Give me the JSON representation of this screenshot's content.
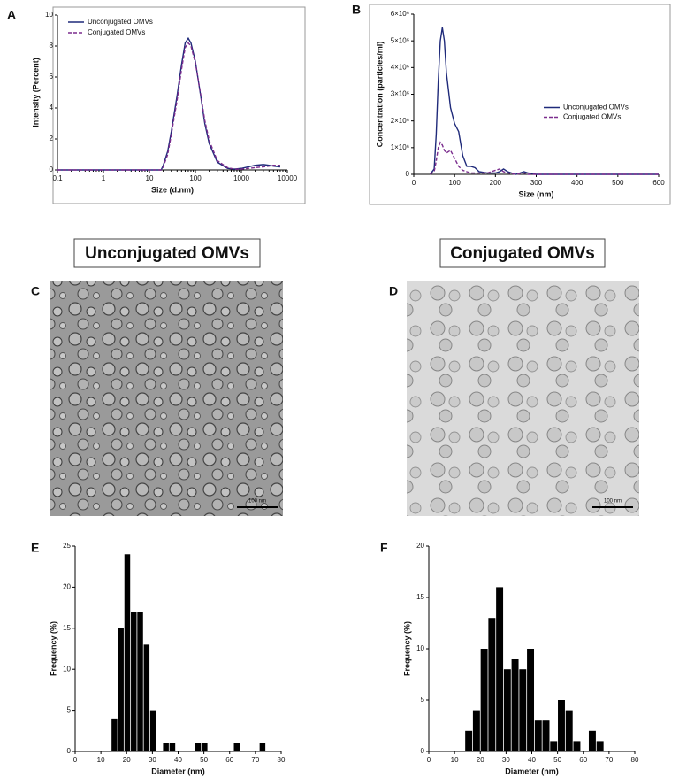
{
  "chart_data": [
    {
      "type": "line",
      "label": "A",
      "xscale": "log",
      "xlabel": "Size (d.nm)",
      "ylabel": "Intensity (Percent)",
      "x": [
        0.1,
        10,
        18,
        20,
        25,
        30,
        40,
        50,
        60,
        70,
        80,
        100,
        130,
        160,
        200,
        300,
        500,
        700,
        1000,
        2000,
        3000,
        4000,
        5000,
        7000
      ],
      "xlim": [
        0.1,
        10000
      ],
      "xticks": [
        0.1,
        1,
        10,
        100,
        1000,
        10000
      ],
      "ylim": [
        0,
        10
      ],
      "yticks": [
        0,
        2,
        4,
        6,
        8,
        10
      ],
      "legend": "upper left",
      "series": [
        {
          "name": "Unconjugated OMVs",
          "color": "#1f2a7a",
          "linestyle": "solid",
          "values": [
            0,
            0,
            0,
            0.3,
            1.2,
            2.5,
            4.8,
            6.8,
            8.2,
            8.5,
            8.2,
            7.0,
            4.8,
            3.0,
            1.7,
            0.5,
            0.1,
            0.05,
            0.1,
            0.3,
            0.35,
            0.3,
            0.25,
            0.2
          ]
        },
        {
          "name": "Conjugated OMVs",
          "color": "#7b2d8e",
          "linestyle": "dashed",
          "values": [
            0,
            0,
            0,
            0.2,
            1.0,
            2.3,
            4.5,
            6.5,
            7.9,
            8.2,
            8.0,
            6.9,
            4.9,
            3.2,
            1.9,
            0.6,
            0.15,
            0.05,
            0.05,
            0.15,
            0.2,
            0.25,
            0.3,
            0.3
          ]
        }
      ]
    },
    {
      "type": "line",
      "label": "B",
      "xlabel": "Size (nm)",
      "ylabel": "Concentration (particles/ml)",
      "x": [
        40,
        50,
        55,
        60,
        65,
        70,
        75,
        80,
        90,
        100,
        110,
        120,
        130,
        140,
        150,
        160,
        180,
        200,
        210,
        220,
        230,
        250,
        270,
        280,
        300,
        600
      ],
      "xlim": [
        0,
        600
      ],
      "xticks": [
        0,
        100,
        200,
        300,
        400,
        500,
        600
      ],
      "ylim": [
        0,
        6000000
      ],
      "yticks": [
        0,
        {
          "value": 1000000,
          "label": "1×10⁶"
        },
        {
          "value": 2000000,
          "label": "2×10⁶"
        },
        {
          "value": 3000000,
          "label": "3×10⁶"
        },
        {
          "value": 4000000,
          "label": "4×10⁶"
        },
        {
          "value": 5000000,
          "label": "5×10⁶"
        },
        {
          "value": 6000000,
          "label": "6×10⁶"
        }
      ],
      "legend": "center right",
      "series": [
        {
          "name": "Unconjugated OMVs",
          "color": "#1f2a7a",
          "linestyle": "solid",
          "values": [
            0,
            200000,
            1500000,
            3500000,
            5000000,
            5500000,
            5000000,
            3800000,
            2500000,
            1900000,
            1600000,
            700000,
            300000,
            300000,
            250000,
            100000,
            50000,
            50000,
            100000,
            200000,
            100000,
            0,
            100000,
            50000,
            0,
            0
          ]
        },
        {
          "name": "Conjugated OMVs",
          "color": "#7b2d8e",
          "linestyle": "dashed",
          "values": [
            0,
            100000,
            500000,
            1000000,
            1200000,
            1100000,
            900000,
            800000,
            900000,
            600000,
            300000,
            150000,
            100000,
            50000,
            50000,
            50000,
            50000,
            150000,
            200000,
            100000,
            50000,
            0,
            50000,
            0,
            0,
            0
          ]
        }
      ]
    },
    {
      "type": "histogram",
      "label": "E",
      "xlabel": "Diameter (nm)",
      "ylabel": "Frequency (%)",
      "color": "#000000",
      "bins": [
        14,
        16.5,
        19,
        21.5,
        24,
        26.5,
        29,
        31.5,
        34,
        36.5,
        39,
        41.5,
        44,
        46.5,
        49,
        51.5,
        54,
        56.5,
        59,
        61.5,
        64,
        66.5,
        69,
        71.5,
        74
      ],
      "values": [
        4,
        15,
        24,
        17,
        17,
        13,
        5,
        0,
        1,
        1,
        0,
        0,
        0,
        1,
        1,
        0,
        0,
        0,
        0,
        1,
        0,
        0,
        0,
        1
      ],
      "xlim": [
        0,
        80
      ],
      "xticks": [
        0,
        10,
        20,
        30,
        40,
        50,
        60,
        70,
        80
      ],
      "ylim": [
        0,
        25
      ],
      "yticks": [
        0,
        5,
        10,
        15,
        20,
        25
      ]
    },
    {
      "type": "histogram",
      "label": "F",
      "xlabel": "Diameter (nm)",
      "ylabel": "Frequency (%)",
      "color": "#000000",
      "bins": [
        14,
        17,
        20,
        23,
        26,
        29,
        32,
        35,
        38,
        41,
        44,
        47,
        50,
        53,
        56,
        59,
        62,
        65,
        68
      ],
      "values": [
        2,
        4,
        10,
        13,
        16,
        8,
        9,
        8,
        10,
        3,
        3,
        1,
        5,
        4,
        1,
        0,
        2,
        1
      ],
      "xlim": [
        0,
        80
      ],
      "xticks": [
        0,
        10,
        20,
        30,
        40,
        50,
        60,
        70,
        80
      ],
      "ylim": [
        0,
        20
      ],
      "yticks": [
        0,
        5,
        10,
        15,
        20
      ]
    }
  ],
  "images": [
    {
      "label": "C",
      "heading": "Unconjugated OMVs",
      "scale_bar": "100 nm"
    },
    {
      "label": "D",
      "heading": "Conjugated OMVs",
      "scale_bar": "100 nm"
    }
  ]
}
